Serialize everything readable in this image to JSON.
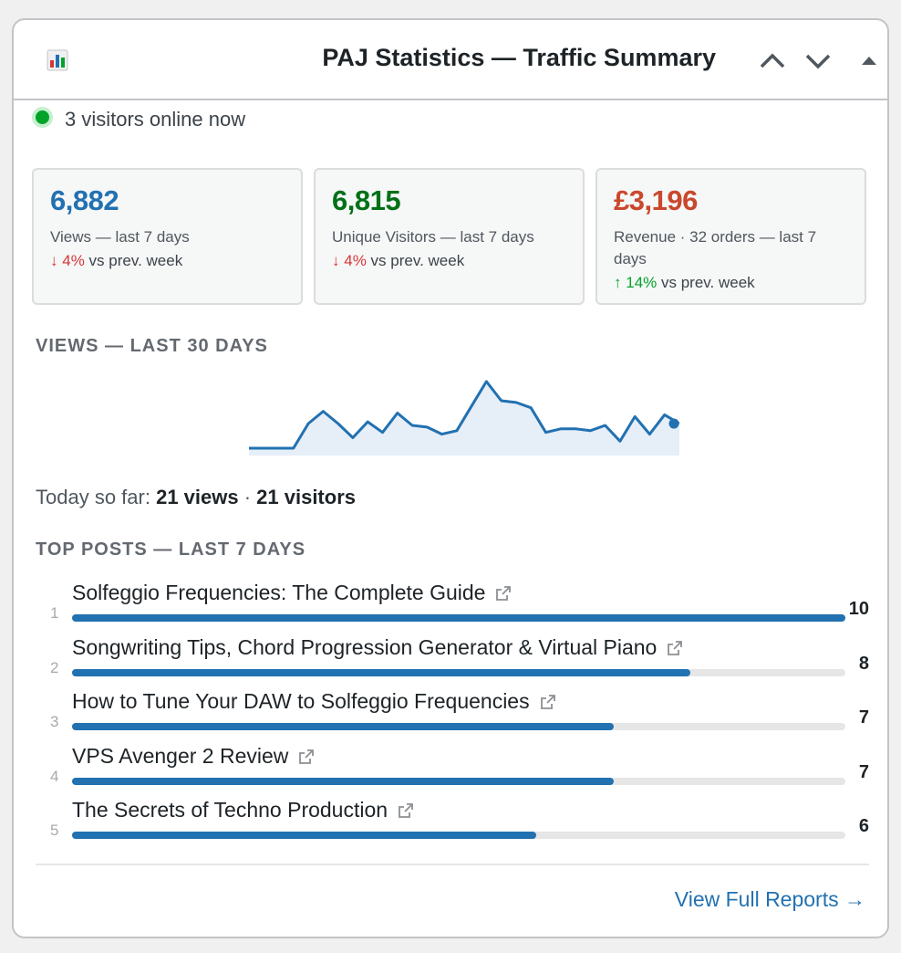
{
  "header": {
    "title": "PAJ Statistics — Traffic Summary"
  },
  "online": {
    "text": "3 visitors online now"
  },
  "cards": [
    {
      "value": "6,882",
      "label": "Views — last 7 days",
      "arrow": "↓",
      "pct": "4%",
      "suffix": " vs prev. week",
      "color": "#2271b1",
      "trend": "down"
    },
    {
      "value": "6,815",
      "label": "Unique Visitors — last 7 days",
      "arrow": "↓",
      "pct": "4%",
      "suffix": " vs prev. week",
      "color": "#007017",
      "trend": "down"
    },
    {
      "value": "£3,196",
      "label": "Revenue · 32 orders — last 7 days",
      "arrow": "↑",
      "pct": "14%",
      "suffix": " vs prev. week",
      "color": "#c9482c",
      "trend": "up"
    }
  ],
  "views_section": {
    "title": "VIEWS — LAST 30 DAYS"
  },
  "chart_data": {
    "type": "area",
    "title": "VIEWS — LAST 30 DAYS",
    "x": [
      1,
      2,
      3,
      4,
      5,
      6,
      7,
      8,
      9,
      10,
      11,
      12,
      13,
      14,
      15,
      16,
      17,
      18,
      19,
      20,
      21,
      22,
      23,
      24,
      25,
      26,
      27,
      28,
      29,
      30
    ],
    "values": [
      0,
      0,
      0,
      0,
      14,
      21,
      14,
      6,
      15,
      9,
      20,
      13,
      12,
      8,
      10,
      24,
      38,
      27,
      26,
      23,
      9,
      11,
      11,
      10,
      13,
      4,
      18,
      8,
      19,
      14
    ],
    "ylim": [
      0,
      40
    ],
    "color": "#2271b1",
    "fill": "#e6eef8"
  },
  "today": {
    "prefix": "Today so far: ",
    "views": "21 views",
    "sep": " · ",
    "visitors": "21 visitors"
  },
  "top_posts": {
    "title": "TOP POSTS — LAST 7 DAYS",
    "max": 10,
    "items": [
      {
        "rank": "1",
        "title": "Solfeggio Frequencies: The Complete Guide",
        "count": 10
      },
      {
        "rank": "2",
        "title": "Songwriting Tips, Chord Progression Generator & Virtual Piano",
        "count": 8
      },
      {
        "rank": "3",
        "title": "How to Tune Your DAW to Solfeggio Frequencies",
        "count": 7
      },
      {
        "rank": "4",
        "title": "VPS Avenger 2 Review",
        "count": 7
      },
      {
        "rank": "5",
        "title": "The Secrets of Techno Production",
        "count": 6
      }
    ]
  },
  "footer": {
    "link": "View Full Reports →"
  }
}
